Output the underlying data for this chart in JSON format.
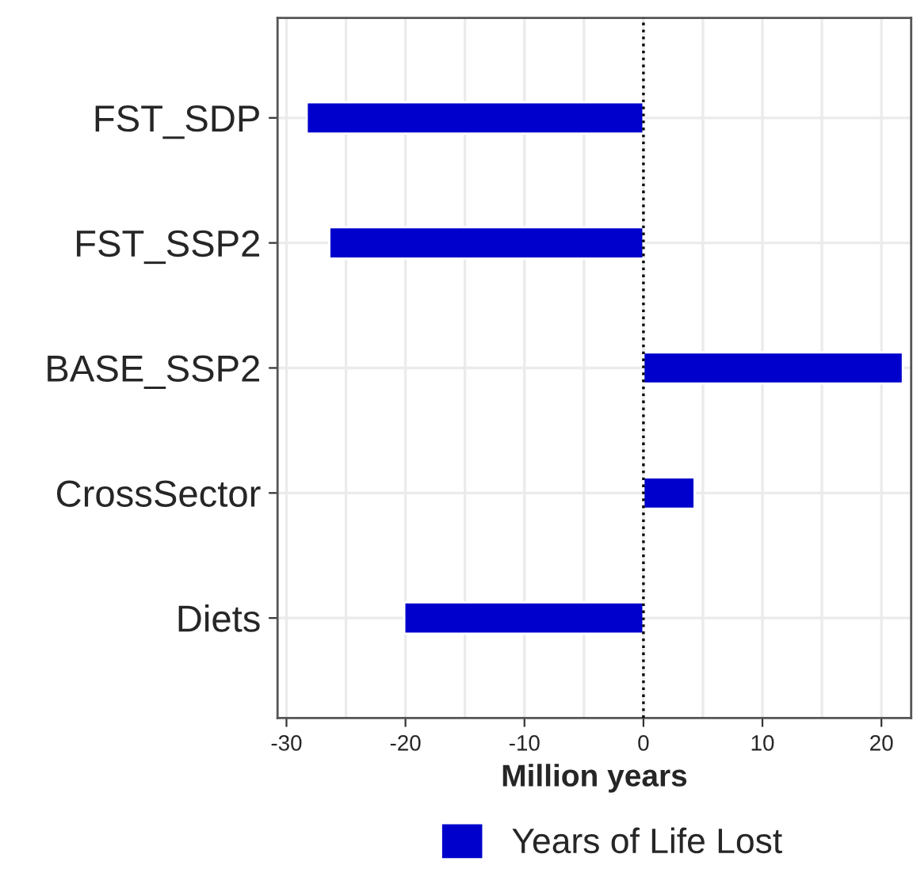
{
  "chart_data": {
    "type": "bar",
    "orientation": "horizontal",
    "categories": [
      "FST_SDP",
      "FST_SSP2",
      "BASE_SSP2",
      "CrossSector",
      "Diets"
    ],
    "series": [
      {
        "name": "Years of Life Lost",
        "color": "#0000cc",
        "values": [
          -28.3,
          -26.4,
          21.8,
          4.3,
          -20.1
        ]
      }
    ],
    "xlabel": "Million years",
    "xlim": [
      -30.75,
      22.5
    ],
    "xticks": [
      -30,
      -20,
      -10,
      0,
      10,
      20
    ],
    "ref_lines": [
      {
        "axis": "x",
        "value": 0,
        "line_style": "dotted",
        "color": "#000000"
      }
    ],
    "grid": true,
    "legend": "bottom"
  }
}
